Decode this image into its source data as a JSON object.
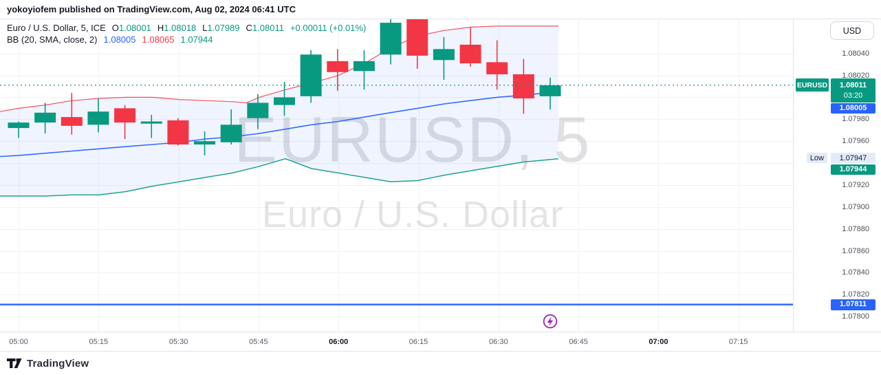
{
  "publish_bar": {
    "text": "yokoyiofem published on TradingView.com, Aug 02, 2024 06:41 UTC"
  },
  "legend": {
    "symbol_title": "Euro / U.S. Dollar, 5, ICE",
    "ohlc": [
      {
        "label": "O",
        "value": "1.08001"
      },
      {
        "label": "H",
        "value": "1.08018"
      },
      {
        "label": "L",
        "value": "1.07989"
      },
      {
        "label": "C",
        "value": "1.08011"
      }
    ],
    "change": "+0.00011 (+0.01%)",
    "indicator_title": "BB (20, SMA, close, 2)",
    "indicator_values": [
      {
        "value": "1.08005",
        "color": "#2962ff"
      },
      {
        "value": "1.08065",
        "color": "#f23645"
      },
      {
        "value": "1.07944",
        "color": "#089981"
      }
    ]
  },
  "watermark": {
    "line1": "EURUSD, 5",
    "line2": "Euro / U.S. Dollar"
  },
  "price_axis": {
    "currency_button": "USD",
    "tick_labels": [
      "1.08040",
      "1.08020",
      "1.07980",
      "1.07960",
      "1.07920",
      "1.07900",
      "1.07880",
      "1.07860",
      "1.07840",
      "1.07820",
      "1.07800"
    ],
    "last_price_badge": {
      "symbol": "EURUSD",
      "price": "1.08011",
      "countdown": "03:20",
      "color": "#089981"
    },
    "bb_basis_badge": {
      "text": "1.08005",
      "color": "#2962ff"
    },
    "low_chip": {
      "label": "Low",
      "value": "1.07947"
    },
    "bb_lower_badge": {
      "text": "1.07944",
      "color": "#089981"
    },
    "hline_badge": {
      "text": "1.07811",
      "color": "#2962ff"
    }
  },
  "time_axis": {
    "ticks": [
      {
        "label": "05:00",
        "bold": false
      },
      {
        "label": "05:15",
        "bold": false
      },
      {
        "label": "05:30",
        "bold": false
      },
      {
        "label": "05:45",
        "bold": false
      },
      {
        "label": "06:00",
        "bold": true
      },
      {
        "label": "06:15",
        "bold": false
      },
      {
        "label": "06:30",
        "bold": false
      },
      {
        "label": "06:45",
        "bold": false
      },
      {
        "label": "07:00",
        "bold": true
      },
      {
        "label": "07:15",
        "bold": false
      }
    ]
  },
  "bottom_bar": {
    "logo_text": "TradingView"
  },
  "colors": {
    "up": "#089981",
    "down": "#f23645",
    "blue": "#2962ff",
    "grid": "#eef1f6",
    "border": "#e0e3eb",
    "band_fill": "rgba(41,98,255,0.07)",
    "watermark": "#2a2e39",
    "lightning": "#9c27b0"
  },
  "chart_data": {
    "type": "candlestick",
    "symbol": "EURUSD",
    "interval": "5",
    "description": "Euro / U.S. Dollar 5-minute candles with Bollinger Bands (20, SMA, close, 2)",
    "price_line": 1.08011,
    "horizontal_line": 1.07811,
    "low_marker": 1.07947,
    "gridline_prices": [
      1.0804,
      1.0802,
      1.08,
      1.0798,
      1.0796,
      1.0794,
      1.0792,
      1.079,
      1.0788,
      1.0786,
      1.0784,
      1.0782,
      1.078
    ],
    "candles": [
      {
        "t": "05:00",
        "o": 1.07972,
        "h": 1.07978,
        "l": 1.07963,
        "c": 1.07977
      },
      {
        "t": "05:05",
        "o": 1.07977,
        "h": 1.07995,
        "l": 1.07967,
        "c": 1.07986
      },
      {
        "t": "05:10",
        "o": 1.07982,
        "h": 1.08004,
        "l": 1.07966,
        "c": 1.07974
      },
      {
        "t": "05:15",
        "o": 1.07975,
        "h": 1.07999,
        "l": 1.07968,
        "c": 1.07987
      },
      {
        "t": "05:20",
        "o": 1.0799,
        "h": 1.07993,
        "l": 1.07962,
        "c": 1.07977
      },
      {
        "t": "05:25",
        "o": 1.07976,
        "h": 1.07984,
        "l": 1.07963,
        "c": 1.07978
      },
      {
        "t": "05:30",
        "o": 1.07979,
        "h": 1.07981,
        "l": 1.07956,
        "c": 1.07957
      },
      {
        "t": "05:35",
        "o": 1.07957,
        "h": 1.07969,
        "l": 1.07947,
        "c": 1.0796
      },
      {
        "t": "05:40",
        "o": 1.07959,
        "h": 1.07989,
        "l": 1.07957,
        "c": 1.07975
      },
      {
        "t": "05:45",
        "o": 1.07981,
        "h": 1.08003,
        "l": 1.07971,
        "c": 1.07995
      },
      {
        "t": "05:50",
        "o": 1.07993,
        "h": 1.08014,
        "l": 1.07983,
        "c": 1.08
      },
      {
        "t": "05:55",
        "o": 1.08001,
        "h": 1.08043,
        "l": 1.07995,
        "c": 1.08039
      },
      {
        "t": "06:00",
        "o": 1.08033,
        "h": 1.08044,
        "l": 1.08006,
        "c": 1.08023
      },
      {
        "t": "06:05",
        "o": 1.08024,
        "h": 1.08043,
        "l": 1.08007,
        "c": 1.08033
      },
      {
        "t": "06:10",
        "o": 1.08039,
        "h": 1.08073,
        "l": 1.0803,
        "c": 1.08068
      },
      {
        "t": "06:15",
        "o": 1.08073,
        "h": 1.08073,
        "l": 1.08026,
        "c": 1.08038
      },
      {
        "t": "06:20",
        "o": 1.08034,
        "h": 1.08055,
        "l": 1.08016,
        "c": 1.08044
      },
      {
        "t": "06:25",
        "o": 1.08048,
        "h": 1.08064,
        "l": 1.08028,
        "c": 1.08031
      },
      {
        "t": "06:30",
        "o": 1.08032,
        "h": 1.08052,
        "l": 1.08007,
        "c": 1.08021
      },
      {
        "t": "06:35",
        "o": 1.08021,
        "h": 1.08035,
        "l": 1.07985,
        "c": 1.07999
      },
      {
        "t": "06:40",
        "o": 1.08001,
        "h": 1.08018,
        "l": 1.07989,
        "c": 1.08011
      }
    ],
    "bollinger": {
      "upper": [
        [
          0,
          1.07987
        ],
        [
          27,
          1.0799
        ],
        [
          66,
          1.07993
        ],
        [
          105,
          1.07997
        ],
        [
          144,
          1.07999
        ],
        [
          183,
          1.08
        ],
        [
          222,
          1.08
        ],
        [
          261,
          1.07998
        ],
        [
          299,
          1.07997
        ],
        [
          338,
          1.07996
        ],
        [
          358,
          1.07995
        ],
        [
          377,
          1.08
        ],
        [
          415,
          1.08007
        ],
        [
          453,
          1.08013
        ],
        [
          492,
          1.0802
        ],
        [
          530,
          1.08031
        ],
        [
          568,
          1.08045
        ],
        [
          607,
          1.08056
        ],
        [
          646,
          1.08061
        ],
        [
          684,
          1.08064
        ],
        [
          723,
          1.08065
        ],
        [
          761,
          1.08065
        ],
        [
          812,
          1.08065
        ]
      ],
      "middle": [
        [
          0,
          1.07946
        ],
        [
          27,
          1.07947
        ],
        [
          66,
          1.07949
        ],
        [
          105,
          1.07951
        ],
        [
          144,
          1.07953
        ],
        [
          183,
          1.07955
        ],
        [
          222,
          1.07957
        ],
        [
          261,
          1.07959
        ],
        [
          299,
          1.07962
        ],
        [
          338,
          1.07964
        ],
        [
          377,
          1.07967
        ],
        [
          415,
          1.07971
        ],
        [
          453,
          1.07975
        ],
        [
          492,
          1.07978
        ],
        [
          530,
          1.07982
        ],
        [
          568,
          1.07986
        ],
        [
          607,
          1.0799
        ],
        [
          646,
          1.07994
        ],
        [
          684,
          1.07997
        ],
        [
          723,
          1.08
        ],
        [
          761,
          1.08002
        ],
        [
          812,
          1.08005
        ]
      ],
      "lower": [
        [
          0,
          1.0791
        ],
        [
          27,
          1.0791
        ],
        [
          66,
          1.0791
        ],
        [
          105,
          1.07911
        ],
        [
          144,
          1.07911
        ],
        [
          183,
          1.07914
        ],
        [
          222,
          1.07919
        ],
        [
          261,
          1.07923
        ],
        [
          299,
          1.07927
        ],
        [
          338,
          1.07931
        ],
        [
          377,
          1.07937
        ],
        [
          415,
          1.07944
        ],
        [
          453,
          1.07935
        ],
        [
          492,
          1.07931
        ],
        [
          530,
          1.07927
        ],
        [
          568,
          1.07923
        ],
        [
          607,
          1.07924
        ],
        [
          646,
          1.07929
        ],
        [
          684,
          1.07933
        ],
        [
          723,
          1.07937
        ],
        [
          761,
          1.07941
        ],
        [
          812,
          1.07944
        ]
      ]
    }
  }
}
